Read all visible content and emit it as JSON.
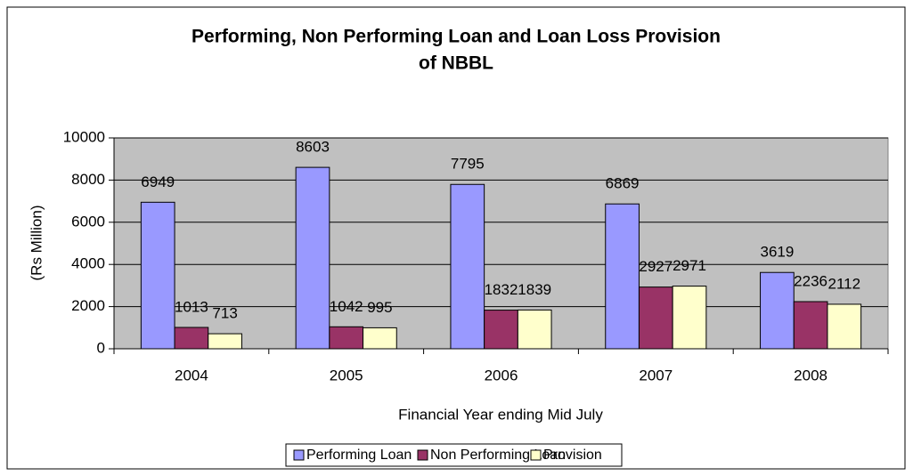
{
  "chart_data": {
    "type": "bar",
    "title": [
      "Performing, Non Performing Loan and Loan Loss Provision",
      "of NBBL"
    ],
    "x_label": "Financial Year ending Mid July",
    "y_label": "(Rs Million)",
    "categories": [
      "2004",
      "2005",
      "2006",
      "2007",
      "2008"
    ],
    "series": [
      {
        "name": "Performing Loan",
        "color": "#9999ff",
        "values": [
          6949,
          8603,
          7795,
          6869,
          3619
        ]
      },
      {
        "name": "Non Performing Loan",
        "color": "#993366",
        "values": [
          1013,
          1042,
          1832,
          2927,
          2236
        ]
      },
      {
        "name": "Provision",
        "color": "#ffffcc",
        "values": [
          713,
          995,
          1839,
          2971,
          2112
        ]
      }
    ],
    "ylim": [
      0,
      10000
    ],
    "yticks": [
      0,
      2000,
      4000,
      6000,
      8000,
      10000
    ],
    "grid": true,
    "legend": "bottom"
  }
}
